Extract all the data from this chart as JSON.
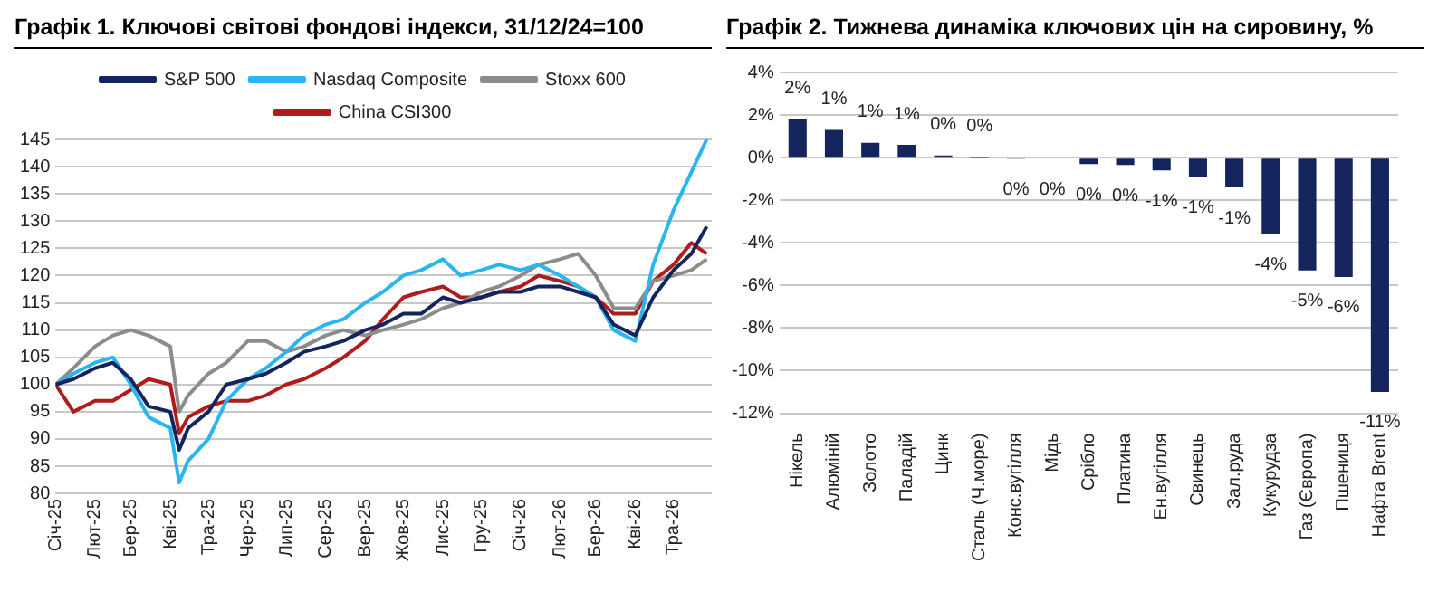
{
  "chart_data": [
    {
      "type": "line",
      "title": "Графік 1. Ключові світові фондові індекси, 31/12/24=100",
      "x": [
        "2025-01-01",
        "2025-01-15",
        "2025-02-01",
        "2025-02-15",
        "2025-03-01",
        "2025-03-15",
        "2025-04-01",
        "2025-04-08",
        "2025-04-15",
        "2025-05-01",
        "2025-05-15",
        "2025-06-01",
        "2025-06-15",
        "2025-07-01",
        "2025-07-15",
        "2025-08-01",
        "2025-08-15",
        "2025-09-01",
        "2025-09-15",
        "2025-10-01",
        "2025-10-15",
        "2025-11-01",
        "2025-11-15",
        "2025-12-01",
        "2025-12-15",
        "2026-01-01",
        "2026-01-15",
        "2026-02-01",
        "2026-02-15",
        "2026-03-01",
        "2026-03-15",
        "2026-04-01",
        "2026-04-15",
        "2026-05-01",
        "2026-05-15",
        "2026-05-27"
      ],
      "series": [
        {
          "name": "S&P 500",
          "color": "#14245c",
          "values": [
            100,
            101,
            103,
            104,
            101,
            96,
            95,
            88,
            92,
            95,
            100,
            101,
            102,
            104,
            106,
            107,
            108,
            110,
            111,
            113,
            113,
            116,
            115,
            116,
            117,
            117,
            118,
            118,
            117,
            116,
            111,
            109,
            116,
            121,
            124,
            129
          ]
        },
        {
          "name": "Nasdaq Composite",
          "color": "#29b6f0",
          "values": [
            100,
            102,
            104,
            105,
            100,
            94,
            92,
            82,
            86,
            90,
            97,
            101,
            103,
            106,
            109,
            111,
            112,
            115,
            117,
            120,
            121,
            123,
            120,
            121,
            122,
            121,
            122,
            120,
            118,
            116,
            110,
            108,
            122,
            132,
            139,
            145
          ]
        },
        {
          "name": "Stoxx 600",
          "color": "#8c8c8c",
          "values": [
            100,
            103,
            107,
            109,
            110,
            109,
            107,
            95,
            98,
            102,
            104,
            108,
            108,
            106,
            107,
            109,
            110,
            109,
            110,
            111,
            112,
            114,
            115,
            117,
            118,
            120,
            122,
            123,
            124,
            120,
            114,
            114,
            119,
            120,
            121,
            123
          ]
        },
        {
          "name": "China CSI300",
          "color": "#b01c1c",
          "values": [
            100,
            95,
            97,
            97,
            99,
            101,
            100,
            91,
            94,
            96,
            97,
            97,
            98,
            100,
            101,
            103,
            105,
            108,
            112,
            116,
            117,
            118,
            116,
            116,
            117,
            118,
            120,
            119,
            118,
            116,
            113,
            113,
            119,
            122,
            126,
            124
          ]
        }
      ],
      "xlim": [
        "2025-01-01",
        "2026-05-31"
      ],
      "xticks": [
        {
          "value": "2025-01-01",
          "label": "Січ-25"
        },
        {
          "value": "2025-02-01",
          "label": "Лют-25"
        },
        {
          "value": "2025-03-01",
          "label": "Бер-25"
        },
        {
          "value": "2025-04-01",
          "label": "Кві-25"
        },
        {
          "value": "2025-05-01",
          "label": "Тра-25"
        },
        {
          "value": "2025-06-01",
          "label": "Чер-25"
        },
        {
          "value": "2025-07-01",
          "label": "Лип-25"
        },
        {
          "value": "2025-08-01",
          "label": "Сер-25"
        },
        {
          "value": "2025-09-01",
          "label": "Вер-25"
        },
        {
          "value": "2025-10-01",
          "label": "Жов-25"
        },
        {
          "value": "2025-11-01",
          "label": "Лис-25"
        },
        {
          "value": "2025-12-01",
          "label": "Гру-25"
        },
        {
          "value": "2026-01-01",
          "label": "Січ-26"
        },
        {
          "value": "2026-02-01",
          "label": "Лют-26"
        },
        {
          "value": "2026-03-01",
          "label": "Бер-26"
        },
        {
          "value": "2026-04-01",
          "label": "Кві-26"
        },
        {
          "value": "2026-05-01",
          "label": "Тра-26"
        }
      ],
      "ylim": [
        80,
        145
      ],
      "yticks": [
        80,
        85,
        90,
        95,
        100,
        105,
        110,
        115,
        120,
        125,
        130,
        135,
        140,
        145
      ],
      "grid": "y",
      "legend": "top",
      "marker": "none",
      "line_style": "solid"
    },
    {
      "type": "bar",
      "title": "Графік 2. Тижнева динаміка ключових цін на сировину, %",
      "categories": [
        "Нікель",
        "Алюміній",
        "Золото",
        "Паладій",
        "Цинк",
        "Сталь (Ч.море)",
        "Конс.вугілля",
        "Мідь",
        "Срібло",
        "Платина",
        "Ен.вугілля",
        "Свинець",
        "Зал.руда",
        "Кукурудза",
        "Газ (Європа)",
        "Пшениця",
        "Нафта Brent"
      ],
      "values": [
        1.8,
        1.3,
        0.7,
        0.6,
        0.1,
        0.02,
        -0.02,
        -0.05,
        -0.3,
        -0.35,
        -0.6,
        -0.9,
        -1.4,
        -3.6,
        -5.3,
        -5.6,
        -11.0
      ],
      "value_labels": [
        "2%",
        "1%",
        "1%",
        "1%",
        "0%",
        "0%",
        "0%",
        "0%",
        "0%",
        "0%",
        "-1%",
        "-1%",
        "-1%",
        "-4%",
        "-5%",
        "-6%",
        "-11%"
      ],
      "color": "#14245c",
      "ylim": [
        -12,
        4
      ],
      "yticks": [
        {
          "value": -12,
          "label": "-12%"
        },
        {
          "value": -10,
          "label": "-10%"
        },
        {
          "value": -8,
          "label": "-8%"
        },
        {
          "value": -6,
          "label": "-6%"
        },
        {
          "value": -4,
          "label": "-4%"
        },
        {
          "value": -2,
          "label": "-2%"
        },
        {
          "value": 0,
          "label": "0%"
        },
        {
          "value": 2,
          "label": "2%"
        },
        {
          "value": 4,
          "label": "4%"
        }
      ],
      "grid": "y",
      "legend": false
    }
  ]
}
